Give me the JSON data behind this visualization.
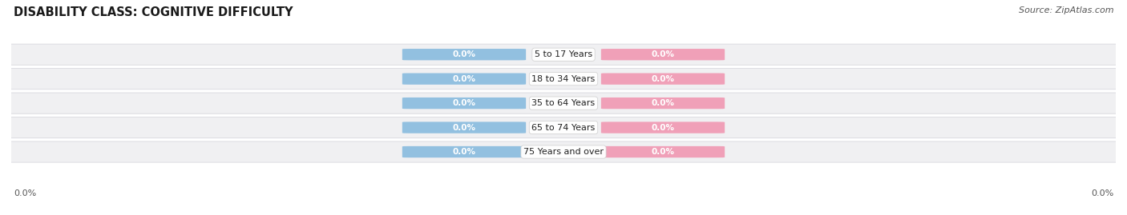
{
  "title": "DISABILITY CLASS: COGNITIVE DIFFICULTY",
  "source": "Source: ZipAtlas.com",
  "categories": [
    "5 to 17 Years",
    "18 to 34 Years",
    "35 to 64 Years",
    "65 to 74 Years",
    "75 Years and over"
  ],
  "male_values": [
    0.0,
    0.0,
    0.0,
    0.0,
    0.0
  ],
  "female_values": [
    0.0,
    0.0,
    0.0,
    0.0,
    0.0
  ],
  "male_color": "#92c0e0",
  "female_color": "#f0a0b8",
  "row_bg_color": "#f0f0f2",
  "row_edge_color": "#d8d8de",
  "background_color": "#ffffff",
  "title_fontsize": 10.5,
  "source_fontsize": 8,
  "bar_height": 0.62,
  "cat_label_fontsize": 8,
  "val_label_fontsize": 7.5
}
